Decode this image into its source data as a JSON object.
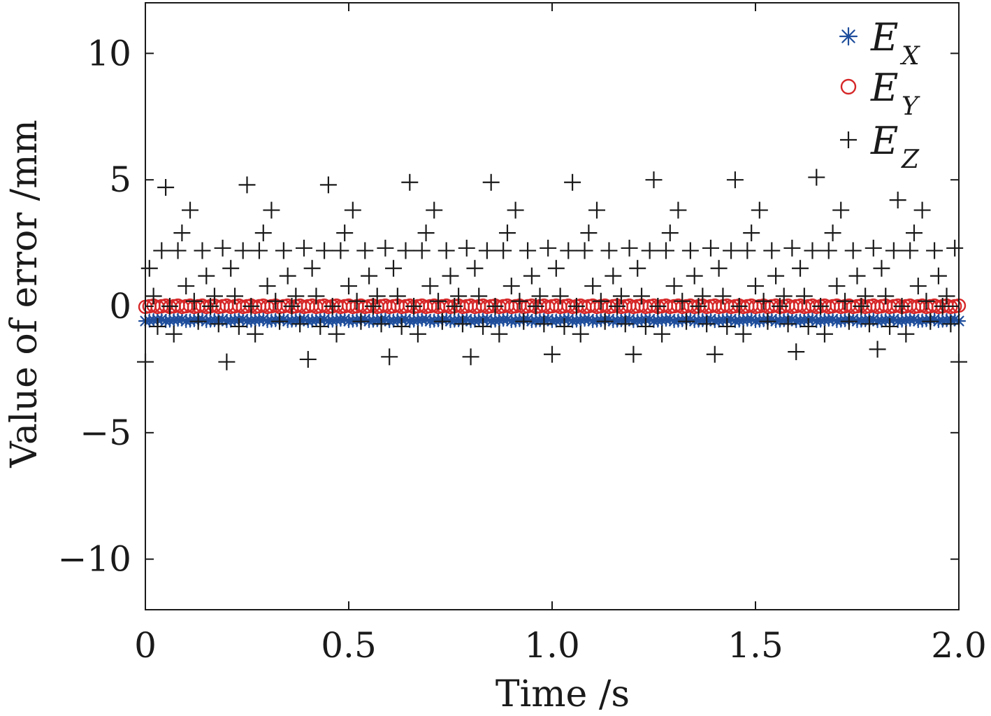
{
  "chart_data": {
    "type": "scatter",
    "title": "",
    "xlabel": "Time /s",
    "ylabel": "Value of error /mm",
    "xlim": [
      0,
      2.0
    ],
    "ylim": [
      -12,
      12
    ],
    "xticks": [
      0,
      0.5,
      1.0,
      1.5,
      2.0
    ],
    "xtick_labels": [
      "0",
      "0.5",
      "1.0",
      "1.5",
      "2.0"
    ],
    "yticks": [
      10,
      5,
      0,
      -5,
      -10
    ],
    "ytick_labels": [
      "10",
      "5",
      "0",
      "−5",
      "−10"
    ],
    "grid": false,
    "legend_position": "top-right",
    "series": [
      {
        "name": "E_X",
        "label_main": "E",
        "label_sub": "X",
        "marker": "asterisk",
        "color": "#1f4e9c",
        "sampling": {
          "t_start": 0,
          "t_end": 2.0,
          "step": 0.01
        },
        "value_range": [
          -0.65,
          -0.45
        ],
        "typical_value": -0.55
      },
      {
        "name": "E_Y",
        "label_main": "E",
        "label_sub": "Y",
        "marker": "circle",
        "color": "#d62728",
        "sampling": {
          "t_start": 0,
          "t_end": 2.0,
          "step": 0.01
        },
        "value_range": [
          -0.05,
          0.05
        ],
        "typical_value": 0.0
      },
      {
        "name": "E_Z",
        "label_main": "E",
        "label_sub": "Z",
        "marker": "plus",
        "color": "#1a1a1a",
        "sampling": {
          "t_start": 0,
          "t_end": 2.0,
          "step": 0.01
        },
        "period_s": 0.2,
        "cycle_values": [
          -2.2,
          1.5,
          0.4,
          -0.8,
          2.2,
          -0.7,
          0.0,
          -1.1,
          2.2,
          2.9,
          0.8,
          3.8,
          0.2,
          -0.6,
          2.2,
          1.2,
          0.0,
          0.4,
          -0.7,
          2.3
        ],
        "peak_values": [
          4.7,
          4.8,
          4.8,
          4.9,
          4.9,
          4.9,
          5.0,
          5.0,
          5.1,
          4.2,
          4.3
        ],
        "trough_values": [
          -2.2,
          -2.2,
          -2.1,
          -2.0,
          -2.0,
          -1.9,
          -1.9,
          -1.9,
          -1.8,
          -1.7
        ]
      }
    ]
  }
}
